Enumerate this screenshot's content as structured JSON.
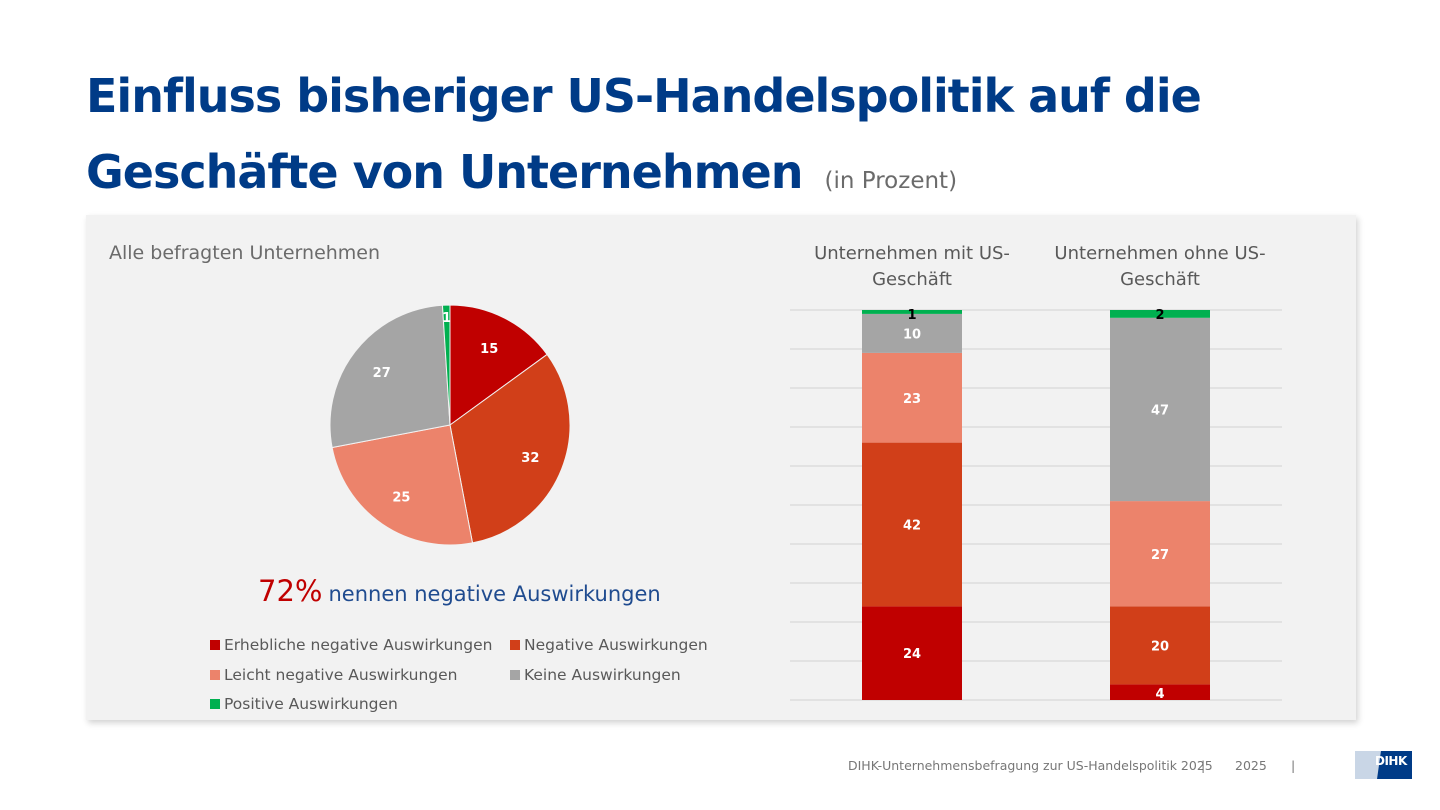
{
  "title": {
    "line1": "Einfluss bisheriger US-Handelspolitik auf die",
    "line2": "Geschäfte von Unternehmen",
    "unit": "(in Prozent)"
  },
  "panel_label": "Alle befragten Unternehmen",
  "headline": {
    "pct": "72%",
    "text": "nennen negative Auswirkungen"
  },
  "colors": {
    "erheblich": "#c00000",
    "negativ": "#d13f19",
    "leicht": "#ec836b",
    "keine": "#a5a5a5",
    "positiv": "#00b050",
    "title": "#003b87"
  },
  "chart_data": [
    {
      "type": "pie",
      "title": "Alle befragten Unternehmen",
      "categories": [
        "Erhebliche negative Auswirkungen",
        "Negative Auswirkungen",
        "Leicht negative Auswirkungen",
        "Keine Auswirkungen",
        "Positive Auswirkungen"
      ],
      "values": [
        15,
        32,
        25,
        27,
        1
      ],
      "labels": [
        "15",
        "32",
        "25",
        "27",
        "1"
      ]
    },
    {
      "type": "bar",
      "stacked": true,
      "categories": [
        "Unternehmen mit US-Geschäft",
        "Unternehmen ohne US-Geschäft"
      ],
      "series": [
        {
          "name": "Erhebliche negative Auswirkungen",
          "values": [
            24,
            4
          ]
        },
        {
          "name": "Negative Auswirkungen",
          "values": [
            42,
            20
          ]
        },
        {
          "name": "Leicht negative Auswirkungen",
          "values": [
            23,
            27
          ]
        },
        {
          "name": "Keine Auswirkungen",
          "values": [
            10,
            47
          ]
        },
        {
          "name": "Positive Auswirkungen",
          "values": [
            1,
            2
          ]
        }
      ],
      "ylim": [
        0,
        100
      ],
      "grid": true,
      "legend": "bottom-left (shared)"
    }
  ],
  "bar_titles": [
    {
      "line1": "Unternehmen mit US-",
      "line2": "Geschäft"
    },
    {
      "line1": "Unternehmen ohne US-",
      "line2": "Geschäft"
    }
  ],
  "legend": [
    "Erhebliche negative Auswirkungen",
    "Negative Auswirkungen",
    "Leicht negative Auswirkungen",
    "Keine Auswirkungen",
    "Positive Auswirkungen"
  ],
  "footer": {
    "source": "DIHK-Unternehmensbefragung zur US-Handelspolitik 2025",
    "sep": "|",
    "year": "2025",
    "logo": "DIHK"
  }
}
